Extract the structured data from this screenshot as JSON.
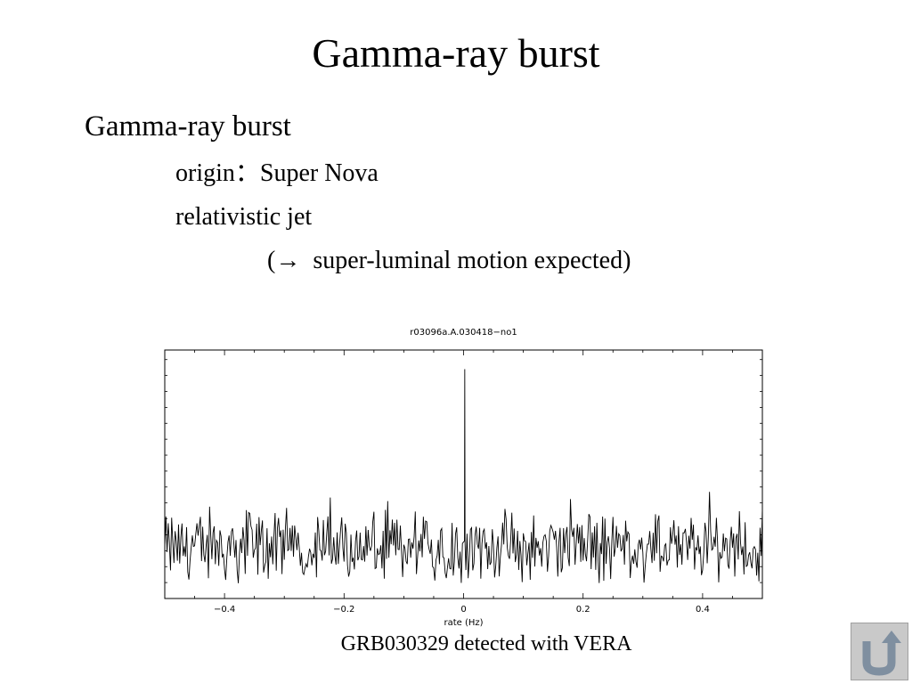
{
  "slide": {
    "title": "Gamma-ray burst",
    "bullets": {
      "l1": "Gamma-ray burst",
      "l2a": "origin：Super Nova",
      "l2b": "relativistic jet",
      "l3_prefix": "(→",
      "l3_text": "super-luminal motion expected)"
    },
    "caption": "GRB030329 detected with VERA"
  },
  "chart_data": {
    "type": "line",
    "title": "r03096a.A.030418−no1",
    "xlabel": "rate (Hz)",
    "ylabel": "",
    "xlim": [
      -0.5,
      0.5
    ],
    "ylim": [
      -1.6,
      6.2
    ],
    "x_ticks": [
      -0.4,
      -0.2,
      0,
      0.2,
      0.4
    ],
    "x_tick_labels": [
      "−0.4",
      "−0.2",
      "0",
      "0.2",
      "0.4"
    ],
    "grid": false,
    "noise_description": "random noise around 0 with amplitude about ±1.3",
    "peak": {
      "x": 0.002,
      "y": 5.6
    }
  },
  "nav": {
    "home_icon": "return-arrow-icon",
    "button_color": "#c9c9c9",
    "icon_color": "#7f8fa0"
  }
}
